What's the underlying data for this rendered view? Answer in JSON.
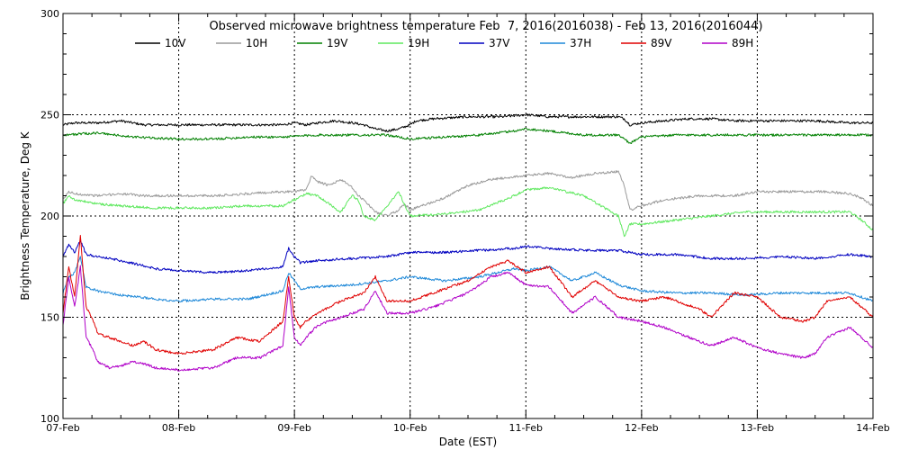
{
  "chart_data": {
    "type": "line",
    "title": "Observed microwave brightness temperature Feb  7, 2016(2016038) - Feb 13, 2016(2016044)",
    "xlabel": "Date (EST)",
    "ylabel": "Brightness Temperature, Deg K",
    "xlim": [
      0,
      7
    ],
    "ylim": [
      100,
      300
    ],
    "x_ticks": [
      {
        "value": 0,
        "label": "07-Feb"
      },
      {
        "value": 1,
        "label": "08-Feb"
      },
      {
        "value": 2,
        "label": "09-Feb"
      },
      {
        "value": 3,
        "label": "10-Feb"
      },
      {
        "value": 4,
        "label": "11-Feb"
      },
      {
        "value": 5,
        "label": "12-Feb"
      },
      {
        "value": 6,
        "label": "13-Feb"
      },
      {
        "value": 7,
        "label": "14-Feb"
      }
    ],
    "y_ticks": [
      {
        "value": 100,
        "label": "100"
      },
      {
        "value": 150,
        "label": "150"
      },
      {
        "value": 200,
        "label": "200"
      },
      {
        "value": 250,
        "label": "250"
      },
      {
        "value": 300,
        "label": "300"
      }
    ],
    "grid": "dotted",
    "legend_position": "top",
    "series": [
      {
        "name": "10V",
        "color": "#000000",
        "x": [
          0,
          0.1,
          0.3,
          0.5,
          0.7,
          1.0,
          1.3,
          1.6,
          1.9,
          2.0,
          2.1,
          2.2,
          2.35,
          2.5,
          2.6,
          2.7,
          2.8,
          2.9,
          3.0,
          3.05,
          3.2,
          3.5,
          3.8,
          4.0,
          4.2,
          4.4,
          4.6,
          4.8,
          4.85,
          4.9,
          5.0,
          5.2,
          5.4,
          5.6,
          5.8,
          6.0,
          6.2,
          6.5,
          6.8,
          7.0
        ],
        "y": [
          245,
          246,
          246,
          247,
          245,
          245,
          245,
          245,
          245,
          246,
          245,
          246,
          247,
          246,
          245,
          243,
          242,
          243,
          245,
          247,
          248,
          249,
          249,
          250,
          249,
          249,
          249,
          249,
          248,
          245,
          246,
          247,
          248,
          248,
          247,
          247,
          247,
          247,
          246,
          246
        ]
      },
      {
        "name": "10H",
        "color": "#9a9a9a",
        "x": [
          0,
          0.05,
          0.1,
          0.3,
          0.5,
          0.7,
          1.0,
          1.3,
          1.6,
          1.9,
          2.0,
          2.1,
          2.15,
          2.2,
          2.3,
          2.4,
          2.5,
          2.55,
          2.6,
          2.7,
          2.8,
          2.9,
          2.95,
          3.0,
          3.3,
          3.5,
          3.7,
          4.0,
          4.2,
          4.4,
          4.6,
          4.8,
          4.85,
          4.9,
          5.0,
          5.2,
          5.5,
          5.8,
          6.0,
          6.3,
          6.6,
          6.8,
          6.9,
          7.0
        ],
        "y": [
          208,
          212,
          211,
          210,
          211,
          210,
          210,
          210,
          211,
          212,
          212,
          213,
          220,
          217,
          215,
          218,
          214,
          210,
          208,
          202,
          200,
          203,
          206,
          203,
          209,
          215,
          218,
          220,
          221,
          219,
          221,
          222,
          215,
          203,
          205,
          208,
          210,
          210,
          212,
          212,
          212,
          211,
          209,
          205
        ]
      },
      {
        "name": "19V",
        "color": "#008000",
        "x": [
          0,
          0.3,
          0.6,
          1.0,
          1.3,
          1.6,
          1.9,
          2.2,
          2.5,
          2.8,
          2.9,
          3.0,
          3.3,
          3.6,
          3.9,
          4.0,
          4.2,
          4.5,
          4.8,
          4.85,
          4.9,
          5.0,
          5.3,
          5.6,
          6.0,
          6.3,
          6.6,
          7.0
        ],
        "y": [
          240,
          241,
          239,
          238,
          238,
          239,
          239,
          240,
          240,
          240,
          239,
          238,
          239,
          240,
          242,
          243,
          242,
          240,
          240,
          238,
          236,
          239,
          240,
          240,
          240,
          240,
          240,
          240
        ]
      },
      {
        "name": "19H",
        "color": "#5ee85e",
        "x": [
          0,
          0.05,
          0.1,
          0.3,
          0.5,
          0.8,
          1.0,
          1.3,
          1.6,
          1.9,
          2.0,
          2.1,
          2.2,
          2.3,
          2.4,
          2.5,
          2.55,
          2.6,
          2.7,
          2.8,
          2.9,
          3.0,
          3.3,
          3.6,
          3.9,
          4.0,
          4.2,
          4.5,
          4.8,
          4.85,
          4.9,
          5.0,
          5.3,
          5.6,
          5.9,
          6.2,
          6.5,
          6.8,
          6.9,
          7.0
        ],
        "y": [
          206,
          210,
          208,
          206,
          205,
          204,
          204,
          204,
          205,
          205,
          208,
          211,
          210,
          206,
          202,
          210,
          208,
          200,
          198,
          205,
          212,
          200,
          201,
          203,
          210,
          213,
          214,
          210,
          200,
          190,
          196,
          196,
          198,
          200,
          202,
          202,
          202,
          202,
          198,
          193
        ]
      },
      {
        "name": "37V",
        "color": "#0000c0",
        "x": [
          0,
          0.05,
          0.1,
          0.15,
          0.2,
          0.3,
          0.5,
          0.8,
          1.0,
          1.3,
          1.6,
          1.9,
          1.95,
          2.0,
          2.05,
          2.2,
          2.5,
          2.8,
          3.0,
          3.3,
          3.6,
          3.9,
          4.0,
          4.2,
          4.5,
          4.8,
          5.0,
          5.3,
          5.6,
          5.9,
          6.2,
          6.5,
          6.8,
          7.0
        ],
        "y": [
          180,
          186,
          182,
          188,
          181,
          180,
          178,
          174,
          173,
          172,
          173,
          175,
          184,
          180,
          177,
          178,
          179,
          180,
          182,
          182,
          183,
          184,
          185,
          184,
          183,
          183,
          181,
          181,
          179,
          179,
          180,
          179,
          181,
          180
        ]
      },
      {
        "name": "37H",
        "color": "#1e88d8",
        "x": [
          0,
          0.05,
          0.1,
          0.15,
          0.2,
          0.3,
          0.5,
          0.8,
          1.0,
          1.3,
          1.6,
          1.9,
          1.95,
          2.0,
          2.05,
          2.2,
          2.5,
          2.8,
          3.0,
          3.3,
          3.6,
          3.9,
          4.0,
          4.2,
          4.4,
          4.6,
          4.8,
          5.0,
          5.3,
          5.6,
          5.9,
          6.2,
          6.5,
          6.8,
          6.9,
          7.0
        ],
        "y": [
          162,
          170,
          172,
          180,
          165,
          163,
          161,
          159,
          158,
          159,
          159,
          163,
          172,
          168,
          164,
          165,
          166,
          168,
          170,
          168,
          170,
          174,
          173,
          175,
          168,
          172,
          166,
          163,
          162,
          162,
          161,
          162,
          162,
          162,
          160,
          158
        ]
      },
      {
        "name": "89V",
        "color": "#e00000",
        "x": [
          0,
          0.05,
          0.1,
          0.15,
          0.2,
          0.25,
          0.3,
          0.4,
          0.5,
          0.6,
          0.7,
          0.8,
          1.0,
          1.3,
          1.5,
          1.7,
          1.9,
          1.95,
          2.0,
          2.05,
          2.1,
          2.2,
          2.4,
          2.6,
          2.7,
          2.8,
          3.0,
          3.2,
          3.5,
          3.7,
          3.85,
          4.0,
          4.2,
          4.4,
          4.6,
          4.8,
          5.0,
          5.2,
          5.5,
          5.6,
          5.8,
          6.0,
          6.2,
          6.4,
          6.5,
          6.6,
          6.8,
          7.0
        ],
        "y": [
          152,
          175,
          160,
          190,
          155,
          150,
          142,
          140,
          138,
          136,
          138,
          134,
          132,
          134,
          140,
          138,
          148,
          170,
          150,
          145,
          148,
          152,
          158,
          162,
          170,
          158,
          158,
          162,
          168,
          175,
          178,
          172,
          175,
          160,
          168,
          160,
          158,
          160,
          154,
          150,
          162,
          160,
          150,
          148,
          150,
          158,
          160,
          150
        ]
      },
      {
        "name": "89H",
        "color": "#b000c8",
        "x": [
          0,
          0.05,
          0.1,
          0.15,
          0.2,
          0.25,
          0.3,
          0.4,
          0.5,
          0.6,
          0.7,
          0.8,
          1.0,
          1.3,
          1.5,
          1.7,
          1.9,
          1.95,
          2.0,
          2.05,
          2.1,
          2.2,
          2.4,
          2.6,
          2.7,
          2.8,
          3.0,
          3.2,
          3.5,
          3.7,
          3.85,
          4.0,
          4.2,
          4.4,
          4.6,
          4.8,
          5.0,
          5.2,
          5.5,
          5.6,
          5.8,
          6.0,
          6.2,
          6.4,
          6.5,
          6.6,
          6.8,
          7.0
        ],
        "y": [
          146,
          170,
          155,
          175,
          140,
          135,
          128,
          125,
          126,
          128,
          127,
          125,
          124,
          125,
          130,
          130,
          136,
          165,
          140,
          136,
          140,
          146,
          150,
          154,
          163,
          152,
          152,
          155,
          162,
          170,
          172,
          166,
          165,
          152,
          160,
          150,
          148,
          145,
          138,
          136,
          140,
          135,
          132,
          130,
          132,
          140,
          145,
          135
        ]
      }
    ]
  }
}
